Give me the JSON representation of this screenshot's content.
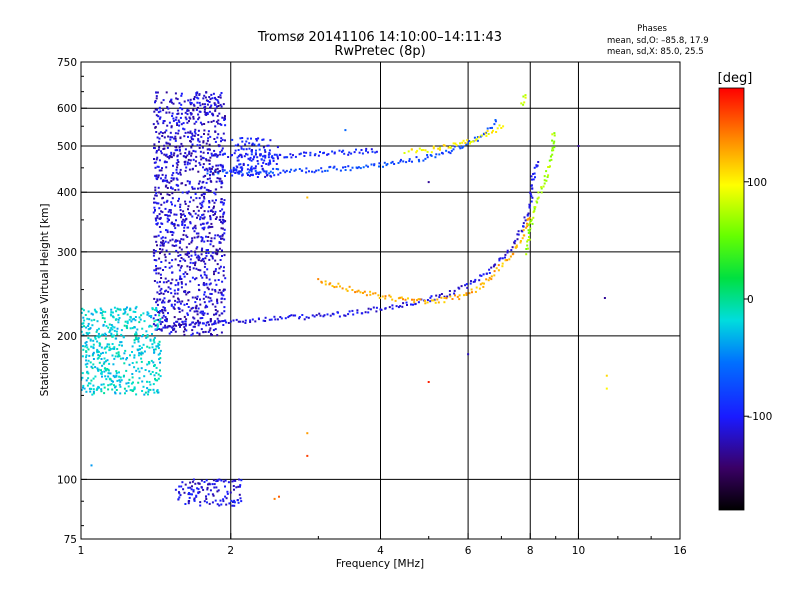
{
  "header": {
    "title_line1": "Tromsø 20141106 14:10:00–14:11:43",
    "title_line2": "RwPretec (8p)"
  },
  "phases_box": {
    "heading": "Phases",
    "o_stats": "mean, sd,O: –85.8, 17.9",
    "x_stats": "mean, sd,X: 85.0, 25.5"
  },
  "colorbar": {
    "unit_label": "[deg]",
    "ticks": [
      {
        "value": 100,
        "label": "100"
      },
      {
        "value": 0,
        "label": "0"
      },
      {
        "value": -100,
        "label": "–100"
      }
    ],
    "range": [
      -180,
      180
    ]
  },
  "chart_data": {
    "type": "scatter",
    "title": "Tromsø 20141106 14:10:00–14:11:43",
    "subtitle": "RwPretec (8p)",
    "xlabel": "Frequency [MHz]",
    "ylabel": "Stationary phase Virtual Height [km]",
    "x_scale": "log",
    "y_scale": "log",
    "xlim": [
      1,
      16
    ],
    "ylim": [
      75,
      750
    ],
    "x_ticks": [
      {
        "value": 1,
        "label": "1"
      },
      {
        "value": 2,
        "label": "2"
      },
      {
        "value": 4,
        "label": "4"
      },
      {
        "value": 6,
        "label": "6"
      },
      {
        "value": 8,
        "label": "8"
      },
      {
        "value": 10,
        "label": "10"
      },
      {
        "value": 16,
        "label": "16"
      }
    ],
    "y_ticks": [
      {
        "value": 75,
        "label": "75"
      },
      {
        "value": 100,
        "label": "100"
      },
      {
        "value": 200,
        "label": "200"
      },
      {
        "value": 300,
        "label": "300"
      },
      {
        "value": 400,
        "label": "400"
      },
      {
        "value": 500,
        "label": "500"
      },
      {
        "value": 600,
        "label": "600"
      },
      {
        "value": 750,
        "label": "750"
      }
    ],
    "grid_x": [
      2,
      4,
      6,
      8,
      10
    ],
    "grid_y": [
      100,
      200,
      300,
      400,
      500,
      600
    ],
    "color_scale": "rainbow phase [deg], -180 (black) to 180 (red)",
    "series": [
      {
        "traces": [
          {
            "x": [
              1.55,
              1.8,
              2.0,
              2.2,
              2.6,
              3.0,
              3.5,
              4.0,
              4.5,
              5.0,
              5.5,
              6.0,
              6.5,
              7.0,
              7.4,
              7.7,
              7.9,
              8.0
            ],
            "y": [
              213,
              212,
              214,
              216,
              218,
              220,
              223,
              228,
              232,
              238,
              245,
              255,
              270,
              290,
              310,
              335,
              360,
              380
            ],
            "phase": -110
          },
          {
            "x": [
              8.0,
              8.1,
              8.3
            ],
            "y": [
              380,
              430,
              470
            ],
            "phase": -105
          },
          {
            "x": [
              1.8,
              2.0,
              2.4,
              3.0,
              3.6,
              4.2,
              4.8,
              5.4,
              5.9,
              6.3,
              6.7,
              6.9
            ],
            "y": [
              440,
              440,
              442,
              445,
              450,
              460,
              470,
              485,
              500,
              520,
              550,
              570
            ],
            "phase": -75
          },
          {
            "x": [
              1.8,
              2.0,
              2.5,
              3.0,
              3.5,
              4.0
            ],
            "y": [
              480,
              478,
              478,
              480,
              485,
              490
            ],
            "phase": -95
          },
          {
            "x": [
              4.5,
              5.0,
              5.5,
              6.0,
              6.4,
              6.8,
              7.1
            ],
            "y": [
              485,
              490,
              500,
              510,
              525,
              540,
              555
            ],
            "phase": 100
          },
          {
            "x": [
              3.0,
              3.4,
              3.8,
              4.2,
              4.6,
              5.0,
              5.4,
              5.8,
              6.2,
              6.6,
              7.0,
              7.4,
              7.8,
              8.0
            ],
            "y": [
              262,
              252,
              245,
              240,
              237,
              236,
              238,
              242,
              250,
              262,
              280,
              300,
              330,
              360
            ],
            "phase": 125
          },
          {
            "x": [
              7.9,
              8.0,
              8.2,
              8.4,
              8.6,
              8.8,
              8.9,
              8.9
            ],
            "y": [
              300,
              340,
              380,
              400,
              430,
              470,
              500,
              540
            ],
            "phase": 70
          },
          {
            "x": [
              7.7,
              7.8,
              7.9
            ],
            "y": [
              610,
              630,
              650
            ],
            "phase": 85
          }
        ],
        "clusters": [
          {
            "x_range": [
              1.4,
              1.95
            ],
            "y_range": [
              200,
              650
            ],
            "phase": -115
          },
          {
            "x_range": [
              1.0,
              1.45
            ],
            "y_range": [
              150,
              230
            ],
            "phase": -20
          },
          {
            "x_range": [
              2.0,
              2.5
            ],
            "y_range": [
              430,
              520
            ],
            "phase": -100
          },
          {
            "x_range": [
              1.55,
              2.1
            ],
            "y_range": [
              88,
              100
            ],
            "phase": -110
          }
        ],
        "isolated_points": [
          {
            "x": 1.05,
            "y": 107,
            "phase": -40
          },
          {
            "x": 2.45,
            "y": 91,
            "phase": 140
          },
          {
            "x": 2.5,
            "y": 92,
            "phase": 150
          },
          {
            "x": 2.85,
            "y": 112,
            "phase": 160
          },
          {
            "x": 2.85,
            "y": 125,
            "phase": 130
          },
          {
            "x": 2.85,
            "y": 390,
            "phase": 120
          },
          {
            "x": 5.0,
            "y": 160,
            "phase": 170
          },
          {
            "x": 5.0,
            "y": 420,
            "phase": -130
          },
          {
            "x": 6.0,
            "y": 183,
            "phase": -120
          },
          {
            "x": 11.3,
            "y": 240,
            "phase": -130
          },
          {
            "x": 11.4,
            "y": 165,
            "phase": 110
          },
          {
            "x": 11.4,
            "y": 155,
            "phase": 100
          },
          {
            "x": 10.0,
            "y": 500,
            "phase": -130
          },
          {
            "x": 3.4,
            "y": 540,
            "phase": -60
          }
        ]
      }
    ]
  }
}
